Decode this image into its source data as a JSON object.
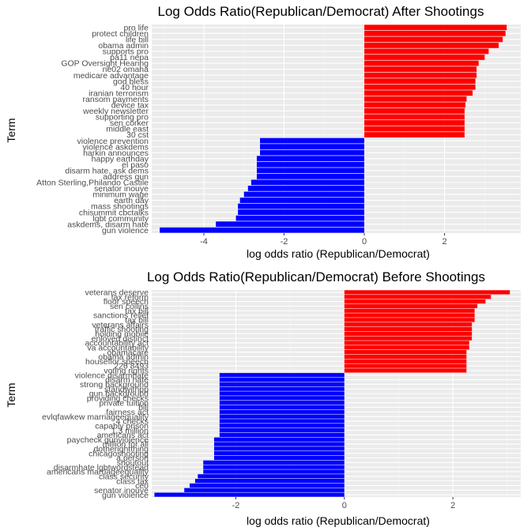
{
  "chart_data": [
    {
      "type": "bar",
      "orientation": "horizontal",
      "title": "Log Odds Ratio(Republican/Democrat) After Shootings",
      "xlabel": "log odds ratio (Republican/Democrat)",
      "ylabel": "Term",
      "xlim": [
        -5.3,
        3.9
      ],
      "xticks": [
        -4,
        -2,
        0,
        2
      ],
      "xtick_labels": [
        "-4",
        "-2",
        "0",
        "2"
      ],
      "grid": true,
      "positive_color": "#ff0000",
      "negative_color": "#0000ff",
      "panel_background": "#ebebeb",
      "categories": [
        "pro life",
        "protect children",
        "life bill",
        "obama admin",
        "supports pro",
        "pa11 nepa",
        "GOP Oversight Hearing",
        "ne02 omaha",
        "medicare advantage",
        "god bless",
        "40 hour",
        "iranian terrorism",
        "ransom payments",
        "device tax",
        "weekly newsletter",
        "supporting pro",
        "sen corker",
        "middle east",
        "30 cst",
        "violence prevention",
        "violence askdems",
        "harkin announces",
        "happy earthday",
        "el paso",
        "disarm hate, ask dems",
        "address gun",
        "Atton Sterling,Philando Castile",
        "senator inouye",
        "minimum wage",
        "earth day",
        "mass shootings",
        "chisummit cbctalks",
        "lgbt community",
        "askdems, disarm hate",
        "gun violence"
      ],
      "values": [
        3.55,
        3.52,
        3.45,
        3.35,
        3.1,
        3.0,
        2.85,
        2.8,
        2.8,
        2.77,
        2.77,
        2.7,
        2.55,
        2.52,
        2.5,
        2.5,
        2.5,
        2.5,
        2.5,
        -2.6,
        -2.6,
        -2.6,
        -2.68,
        -2.68,
        -2.68,
        -2.68,
        -2.82,
        -2.9,
        -3.0,
        -3.1,
        -3.15,
        -3.15,
        -3.2,
        -3.7,
        -5.1
      ]
    },
    {
      "type": "bar",
      "orientation": "horizontal",
      "title": "Log Odds Ratio(Republican/Democrat) Before Shootings",
      "xlabel": "log odds ratio (Republican/Democrat)",
      "ylabel": "Term",
      "xlim": [
        -3.55,
        3.25
      ],
      "xticks": [
        -2,
        0,
        2
      ],
      "xtick_labels": [
        "-2",
        "0",
        "2"
      ],
      "grid": true,
      "positive_color": "#ff0000",
      "negative_color": "#0000ff",
      "panel_background": "#ebebeb",
      "categories": [
        "veterans deserve",
        "tax reform",
        "floor speech",
        "sen collins",
        "tax bill",
        "sanctions relief",
        "tax bill",
        "veterans affairs",
        "traffic shooting",
        "holding mobile",
        "enloved distinct",
        "accountability act",
        "va accountability",
        "obamacare",
        "obama admin",
        "houseflor speech",
        "226 8493",
        "voting rights",
        "violence disarmhate",
        "disarm hate",
        "strong background",
        "standwithpp",
        "gun background",
        "providing checks",
        "private tuition",
        "bill",
        "fairness act",
        "evlqfawkew marriageequality",
        "4 checks",
        "capably prison",
        "1.3 million",
        "americans act",
        "paycheck gunviolence",
        "million for all",
        "dotherightthing",
        "chicagoshooting",
        "a person",
        "shoutout",
        "disarmhate lgbtwordstead",
        "americans marriageequality",
        "class security",
        "class tax",
        "ceo",
        "senator inouye",
        "gun violence"
      ],
      "values": [
        3.05,
        2.7,
        2.6,
        2.45,
        2.4,
        2.4,
        2.4,
        2.35,
        2.35,
        2.35,
        2.35,
        2.3,
        2.3,
        2.25,
        2.25,
        2.25,
        2.25,
        2.25,
        -2.3,
        -2.3,
        -2.3,
        -2.3,
        -2.3,
        -2.3,
        -2.3,
        -2.3,
        -2.3,
        -2.3,
        -2.3,
        -2.3,
        -2.3,
        -2.3,
        -2.4,
        -2.4,
        -2.4,
        -2.4,
        -2.4,
        -2.6,
        -2.6,
        -2.6,
        -2.7,
        -2.75,
        -2.85,
        -2.95,
        -3.5
      ]
    }
  ]
}
